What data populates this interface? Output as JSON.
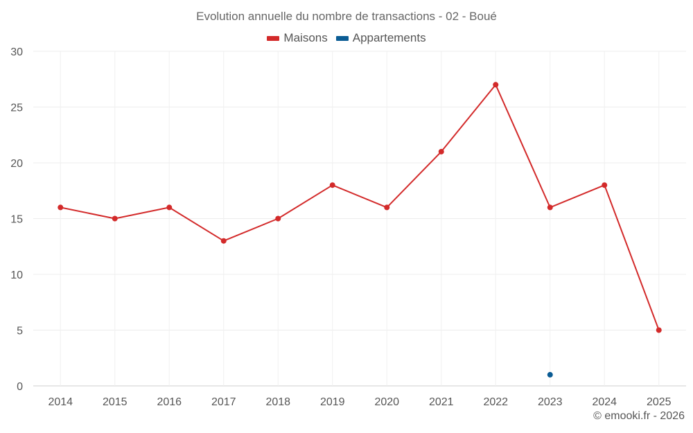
{
  "chart_data": {
    "type": "line",
    "title": "Evolution annuelle du nombre de transactions - 02 - Boué",
    "xlabel": "",
    "ylabel": "",
    "categories": [
      "2014",
      "2015",
      "2016",
      "2017",
      "2018",
      "2019",
      "2020",
      "2021",
      "2022",
      "2023",
      "2024",
      "2025"
    ],
    "ylim": [
      0,
      30
    ],
    "yticks": [
      "0",
      "5",
      "10",
      "15",
      "20",
      "25",
      "30"
    ],
    "grid": true,
    "legend_position": "top-center",
    "series": [
      {
        "name": "Maisons",
        "color": "#d32a2a",
        "values": [
          16,
          15,
          16,
          13,
          15,
          18,
          16,
          21,
          27,
          16,
          18,
          5
        ]
      },
      {
        "name": "Appartements",
        "color": "#0b5c94",
        "values": [
          null,
          null,
          null,
          null,
          null,
          null,
          null,
          null,
          null,
          1,
          null,
          null
        ]
      }
    ]
  },
  "credit": "© emooki.fr - 2026"
}
